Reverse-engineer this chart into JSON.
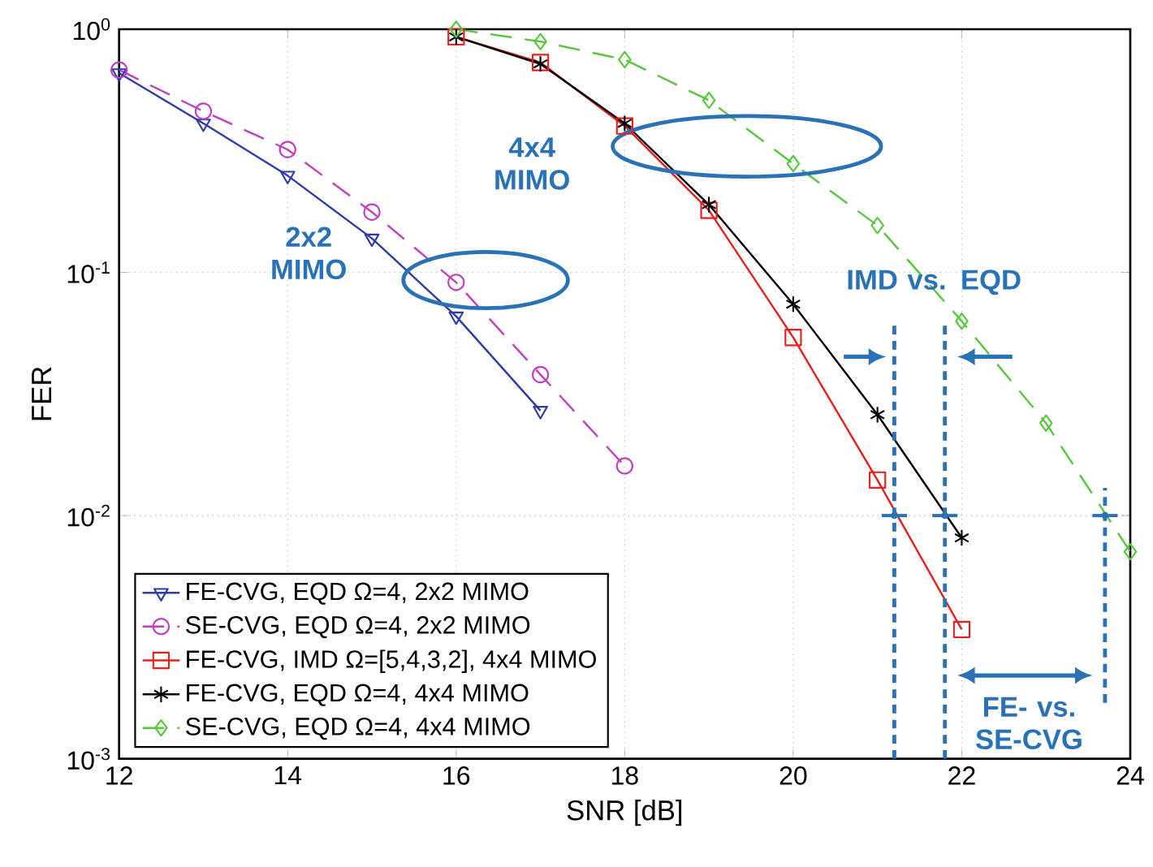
{
  "chart_data": {
    "type": "line",
    "xlabel": "SNR [dB]",
    "ylabel": "FER",
    "log": "y",
    "grid": true,
    "legend": "bottom left",
    "xlim": [
      12,
      24
    ],
    "xticks": [
      12,
      14,
      16,
      18,
      20,
      22,
      24
    ],
    "ylim": [
      0.001,
      1
    ],
    "yticks": [
      {
        "value": 0.001,
        "label": "10$^{-3}$"
      },
      {
        "value": 0.01,
        "label": "10$^{-2}$"
      },
      {
        "value": 0.1,
        "label": "10$^{-1}$"
      },
      {
        "value": 1,
        "label": "10$^{0}$"
      }
    ],
    "x": [
      12,
      13,
      14,
      15,
      16,
      17,
      18,
      19,
      20,
      21,
      22,
      23,
      24
    ],
    "series": [
      {
        "name": "FE-CVG, EQD  Ω=4, 2x2 MIMO",
        "color": "#2e3bab",
        "marker": "triangle",
        "line_style": "solid",
        "values": [
          0.66,
          0.41,
          0.25,
          0.138,
          0.066,
          0.027,
          null,
          null,
          null,
          null,
          null,
          null,
          null
        ]
      },
      {
        "name": "SE-CVG, EQD  Ω=4, 2x2 MIMO",
        "color": "#c040c0",
        "marker": "circle",
        "line_style": "dashed",
        "values": [
          0.68,
          0.46,
          0.32,
          0.177,
          0.091,
          0.038,
          0.016,
          null,
          null,
          null,
          null,
          null,
          null
        ]
      },
      {
        "name": "FE-CVG, IMD  Ω=[5,4,3,2], 4x4 MIMO",
        "color": "#e8201c",
        "marker": "square",
        "line_style": "solid",
        "values": [
          null,
          null,
          null,
          null,
          0.93,
          0.73,
          0.4,
          0.18,
          0.054,
          0.014,
          0.0034,
          null,
          null
        ]
      },
      {
        "name": "FE-CVG, EQD  Ω=4, 4x4 MIMO",
        "color": "#000000",
        "marker": "cross",
        "line_style": "solid",
        "values": [
          null,
          null,
          null,
          null,
          0.93,
          0.72,
          0.41,
          0.19,
          0.074,
          0.026,
          0.0081,
          null,
          null
        ]
      },
      {
        "name": "SE-CVG, EQD  Ω=4, 4x4 MIMO",
        "color": "#55c83a",
        "marker": "diamond",
        "line_style": "dashed",
        "values": [
          null,
          null,
          null,
          null,
          1.0,
          0.89,
          0.75,
          0.51,
          0.28,
          0.156,
          0.063,
          0.024,
          0.0071
        ]
      },
      {
        "type": "scatter",
        "color": "#2a72b8",
        "marker": "circle",
        "x": [
          21.2,
          21.8,
          23.7
        ],
        "values": [
          0.01,
          0.01,
          0.01
        ],
        "xerrors": [
          0.15,
          0.15,
          0.15
        ]
      }
    ],
    "annotations": [
      "2x2 MIMO",
      "4x4 MIMO",
      "IMD vs. EQD",
      "FE- vs. SE-CVG"
    ]
  }
}
